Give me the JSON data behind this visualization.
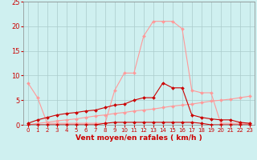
{
  "x": [
    0,
    1,
    2,
    3,
    4,
    5,
    6,
    7,
    8,
    9,
    10,
    11,
    12,
    13,
    14,
    15,
    16,
    17,
    18,
    19,
    20,
    21,
    22,
    23
  ],
  "line_pink_y": [
    8.5,
    5.5,
    0.3,
    0.3,
    0.3,
    0.3,
    0.3,
    0.3,
    0.3,
    7.0,
    10.5,
    10.5,
    18.0,
    21.0,
    21.0,
    21.0,
    19.5,
    7.0,
    6.5,
    6.5,
    0.3,
    0.3,
    0.3,
    0.3
  ],
  "line_darkred_y": [
    0.3,
    1.0,
    1.5,
    2.0,
    2.3,
    2.5,
    2.8,
    3.0,
    3.5,
    4.0,
    4.2,
    5.0,
    5.5,
    5.5,
    8.5,
    7.5,
    7.5,
    2.0,
    1.5,
    1.2,
    1.0,
    1.0,
    0.5,
    0.3
  ],
  "line_trend_y": [
    0.0,
    0.3,
    0.5,
    0.8,
    1.0,
    1.2,
    1.5,
    1.8,
    2.0,
    2.3,
    2.5,
    2.8,
    3.0,
    3.2,
    3.5,
    3.8,
    4.0,
    4.2,
    4.5,
    4.8,
    5.0,
    5.2,
    5.5,
    5.8
  ],
  "line_flat_y": [
    0.0,
    0.0,
    0.0,
    0.0,
    0.0,
    0.0,
    0.0,
    0.0,
    0.3,
    0.5,
    0.5,
    0.5,
    0.5,
    0.5,
    0.5,
    0.5,
    0.5,
    0.5,
    0.3,
    0.0,
    0.0,
    0.0,
    0.0,
    0.0
  ],
  "line_pink_color": "#ff9999",
  "line_darkred_color": "#cc0000",
  "line_trend_color": "#ff9999",
  "line_flat_color": "#cc0000",
  "bg_color": "#cff0f0",
  "grid_color": "#aacccc",
  "xlabel": "Vent moyen/en rafales ( km/h )",
  "ylim": [
    0,
    25
  ],
  "xlim_min": -0.5,
  "xlim_max": 23.5,
  "yticks": [
    0,
    5,
    10,
    15,
    20,
    25
  ],
  "xticks": [
    0,
    1,
    2,
    3,
    4,
    5,
    6,
    7,
    8,
    9,
    10,
    11,
    12,
    13,
    14,
    15,
    16,
    17,
    18,
    19,
    20,
    21,
    22,
    23
  ],
  "font_color": "#cc0000",
  "markersize": 2.0,
  "linewidth": 0.8,
  "tick_fontsize": 5.0,
  "xlabel_fontsize": 6.5
}
